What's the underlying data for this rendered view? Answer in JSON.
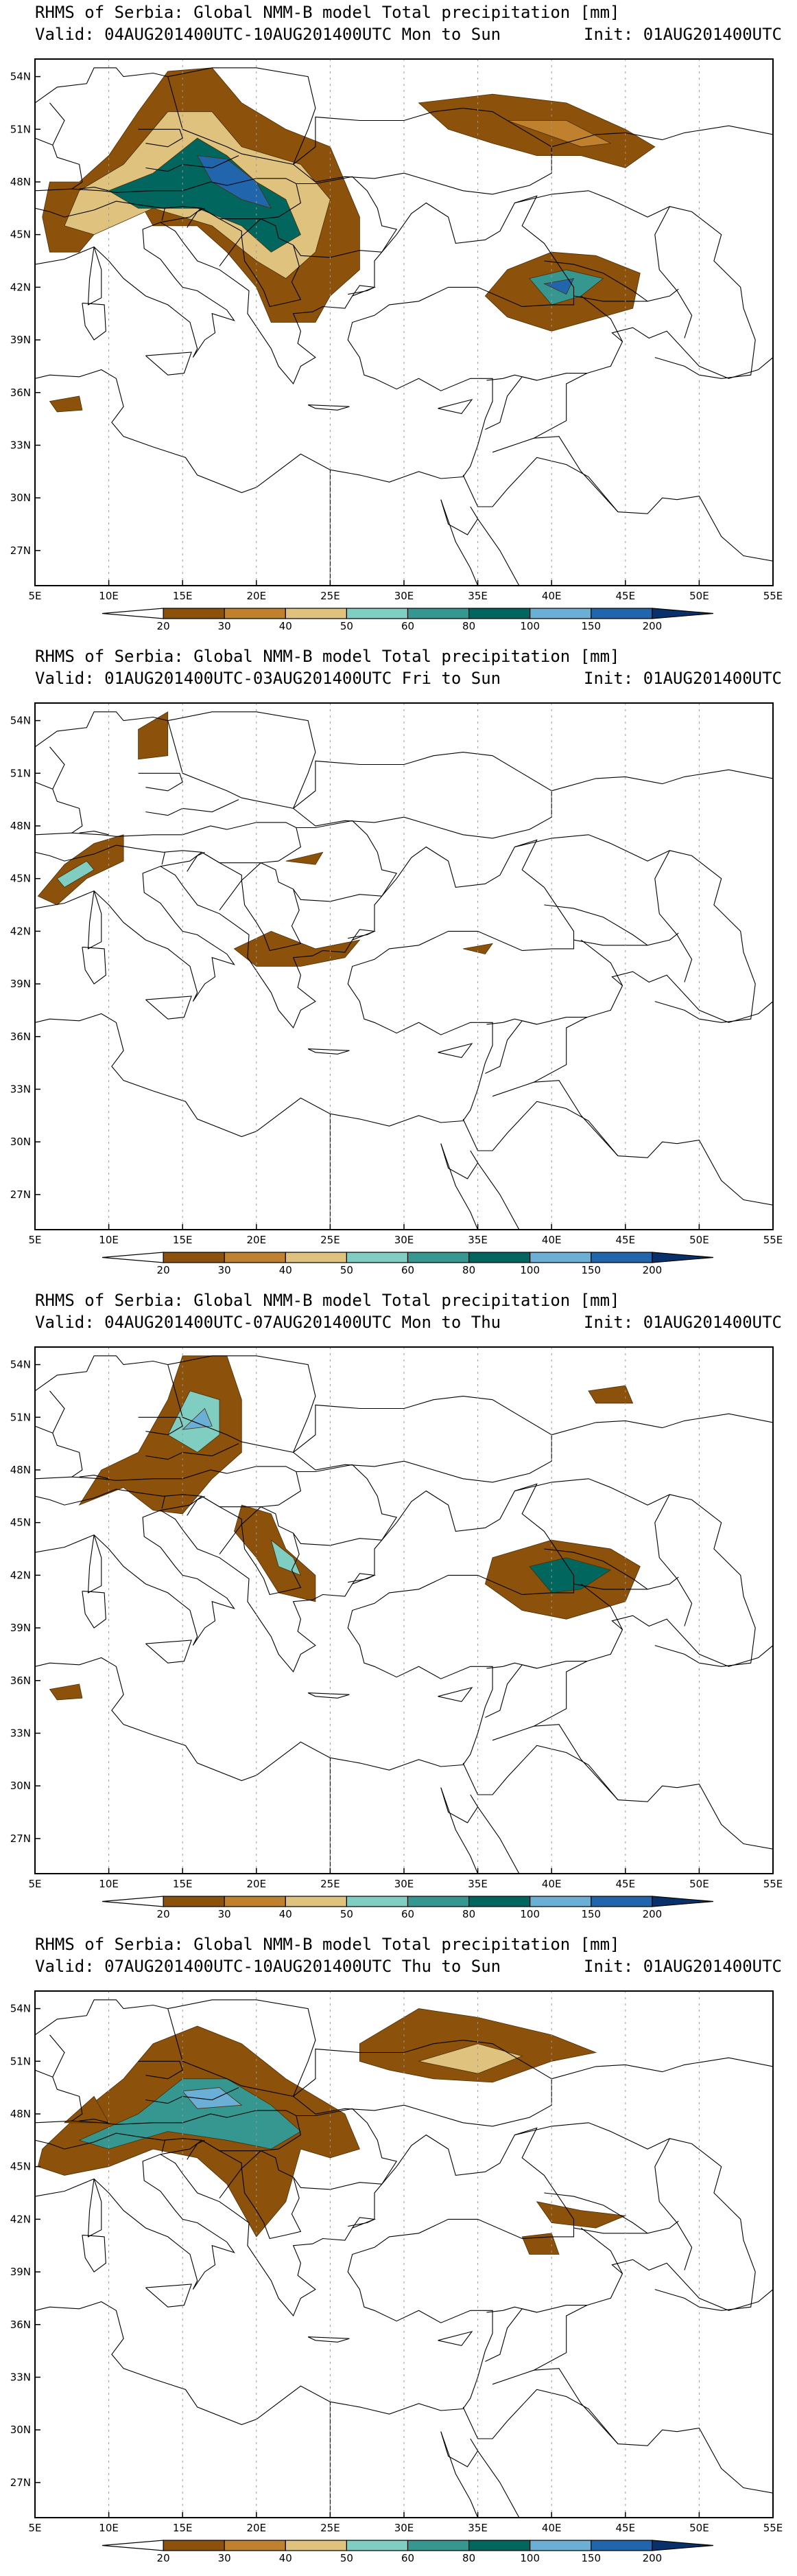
{
  "panels": [
    {
      "title": "RHMS of Serbia: Global NMM-B model Total precipitation [mm]",
      "valid": "Valid: 04AUG201400UTC-10AUG201400UTC Mon to Sun",
      "init": "Init: 01AUG201400UTC",
      "fields": [
        {
          "level": 1,
          "pts": [
            [
              8,
              48
            ],
            [
              10,
              49.5
            ],
            [
              12,
              52
            ],
            [
              14,
              54.3
            ],
            [
              17,
              54.5
            ],
            [
              19,
              52.5
            ],
            [
              22,
              51
            ],
            [
              25,
              50
            ],
            [
              26,
              48
            ],
            [
              27,
              46
            ],
            [
              27,
              43
            ],
            [
              25,
              41.5
            ],
            [
              24,
              40
            ],
            [
              21,
              40
            ],
            [
              20,
              42
            ],
            [
              18,
              44
            ],
            [
              16,
              45.5
            ],
            [
              13,
              45.5
            ],
            [
              12,
              47
            ],
            [
              10,
              46
            ],
            [
              8,
              44
            ],
            [
              6,
              44
            ],
            [
              5.5,
              46
            ],
            [
              6,
              48
            ]
          ]
        },
        {
          "level": 3,
          "pts": [
            [
              8,
              47.5
            ],
            [
              11,
              49
            ],
            [
              14,
              52
            ],
            [
              17,
              52
            ],
            [
              19,
              50
            ],
            [
              23,
              49
            ],
            [
              25,
              47
            ],
            [
              24,
              44
            ],
            [
              22,
              42.5
            ],
            [
              20,
              43.5
            ],
            [
              17,
              45.5
            ],
            [
              13,
              46.5
            ],
            [
              9,
              45
            ],
            [
              7,
              45.5
            ]
          ]
        },
        {
          "level": 6,
          "pts": [
            [
              10,
              47.5
            ],
            [
              13,
              48.5
            ],
            [
              16,
              50.5
            ],
            [
              18,
              49.5
            ],
            [
              20,
              48
            ],
            [
              22,
              47
            ],
            [
              23,
              45
            ],
            [
              21,
              44
            ],
            [
              19,
              45.5
            ],
            [
              16,
              46.5
            ],
            [
              12,
              46.5
            ]
          ]
        },
        {
          "level": 8,
          "pts": [
            [
              16,
              49.5
            ],
            [
              18,
              49.3
            ],
            [
              20,
              48
            ],
            [
              21,
              46.5
            ],
            [
              19,
              47
            ],
            [
              17,
              48
            ]
          ]
        },
        {
          "level": 1,
          "pts": [
            [
              31,
              52.5
            ],
            [
              36,
              53
            ],
            [
              41,
              52.5
            ],
            [
              45,
              51
            ],
            [
              47,
              50
            ],
            [
              45,
              48.8
            ],
            [
              42,
              49.5
            ],
            [
              39,
              49.5
            ],
            [
              36,
              50.2
            ],
            [
              33,
              51
            ]
          ]
        },
        {
          "level": 2,
          "pts": [
            [
              37,
              51.5
            ],
            [
              41,
              51.5
            ],
            [
              44,
              50.2
            ],
            [
              42,
              50
            ]
          ]
        },
        {
          "level": 1,
          "pts": [
            [
              37,
              43
            ],
            [
              40,
              44
            ],
            [
              43,
              43.8
            ],
            [
              46,
              42.8
            ],
            [
              45.5,
              40.8
            ],
            [
              43,
              40.2
            ],
            [
              40,
              39.5
            ],
            [
              37,
              40.3
            ],
            [
              35.5,
              41.5
            ]
          ]
        },
        {
          "level": 5,
          "pts": [
            [
              38.5,
              42.5
            ],
            [
              41,
              43
            ],
            [
              43.5,
              42.5
            ],
            [
              42,
              41.5
            ],
            [
              40,
              41
            ]
          ]
        },
        {
          "level": 8,
          "pts": [
            [
              39.5,
              42.2
            ],
            [
              41.5,
              42.5
            ],
            [
              41,
              41.6
            ]
          ]
        },
        {
          "level": 1,
          "pts": [
            [
              6,
              35.5
            ],
            [
              8,
              35.8
            ],
            [
              8.2,
              35
            ],
            [
              6.5,
              34.9
            ]
          ]
        }
      ]
    },
    {
      "title": "RHMS of Serbia: Global NMM-B model Total precipitation [mm]",
      "valid": "Valid: 01AUG201400UTC-03AUG201400UTC Fri to Sun",
      "init": "Init: 01AUG201400UTC",
      "fields": [
        {
          "level": 1,
          "pts": [
            [
              12,
              53.5
            ],
            [
              14,
              54.5
            ],
            [
              14,
              52
            ],
            [
              12,
              51.8
            ]
          ]
        },
        {
          "level": 1,
          "pts": [
            [
              5.2,
              44
            ],
            [
              7,
              45.8
            ],
            [
              9,
              47
            ],
            [
              11,
              47.5
            ],
            [
              11,
              46
            ],
            [
              8.5,
              45
            ],
            [
              6.5,
              43.5
            ]
          ]
        },
        {
          "level": 4,
          "pts": [
            [
              6.5,
              45
            ],
            [
              8.5,
              46
            ],
            [
              9,
              45.5
            ],
            [
              7,
              44.5
            ]
          ]
        },
        {
          "level": 1,
          "pts": [
            [
              18.5,
              41
            ],
            [
              21,
              42
            ],
            [
              24,
              41
            ],
            [
              27,
              41.5
            ],
            [
              26,
              40.5
            ],
            [
              23,
              40
            ],
            [
              20,
              40
            ]
          ]
        },
        {
          "level": 1,
          "pts": [
            [
              22,
              46
            ],
            [
              24.5,
              46.5
            ],
            [
              24,
              45.8
            ]
          ]
        },
        {
          "level": 1,
          "pts": [
            [
              34,
              41
            ],
            [
              36,
              41.3
            ],
            [
              35.5,
              40.7
            ]
          ]
        }
      ]
    },
    {
      "title": "RHMS of Serbia: Global NMM-B model Total precipitation [mm]",
      "valid": "Valid: 04AUG201400UTC-07AUG201400UTC Mon to Thu",
      "init": "Init: 01AUG201400UTC",
      "fields": [
        {
          "level": 1,
          "pts": [
            [
              12,
              49
            ],
            [
              14,
              52
            ],
            [
              15,
              54.5
            ],
            [
              18,
              54.5
            ],
            [
              19,
              52
            ],
            [
              19,
              49
            ],
            [
              17,
              47.5
            ],
            [
              15,
              45.5
            ],
            [
              13,
              45.7
            ],
            [
              11,
              47
            ],
            [
              8,
              46
            ],
            [
              9.5,
              48
            ]
          ]
        },
        {
          "level": 4,
          "pts": [
            [
              14,
              50
            ],
            [
              15.5,
              52.5
            ],
            [
              17.5,
              52
            ],
            [
              17.5,
              50
            ],
            [
              16,
              49
            ]
          ]
        },
        {
          "level": 7,
          "pts": [
            [
              15,
              50.3
            ],
            [
              16.5,
              51.5
            ],
            [
              17,
              50.5
            ]
          ]
        },
        {
          "level": 1,
          "pts": [
            [
              19,
              46
            ],
            [
              21,
              45.5
            ],
            [
              22,
              43.5
            ],
            [
              24,
              42
            ],
            [
              24,
              40.5
            ],
            [
              21.5,
              41
            ],
            [
              20,
              43
            ],
            [
              18.5,
              44.5
            ]
          ]
        },
        {
          "level": 4,
          "pts": [
            [
              21,
              44
            ],
            [
              22.5,
              43
            ],
            [
              23,
              42
            ],
            [
              21.5,
              42.5
            ]
          ]
        },
        {
          "level": 1,
          "pts": [
            [
              36,
              43
            ],
            [
              40,
              44
            ],
            [
              44,
              43.5
            ],
            [
              46,
              42.5
            ],
            [
              45,
              40.5
            ],
            [
              41,
              39.5
            ],
            [
              38,
              40
            ],
            [
              35.5,
              41.5
            ]
          ]
        },
        {
          "level": 6,
          "pts": [
            [
              38.5,
              42.5
            ],
            [
              41,
              43
            ],
            [
              44,
              42.3
            ],
            [
              42,
              41.2
            ],
            [
              40,
              41
            ]
          ]
        },
        {
          "level": 1,
          "pts": [
            [
              42.5,
              52.5
            ],
            [
              45,
              52.8
            ],
            [
              45.5,
              51.8
            ],
            [
              43,
              51.8
            ]
          ]
        },
        {
          "level": 1,
          "pts": [
            [
              6,
              35.5
            ],
            [
              8,
              35.8
            ],
            [
              8.2,
              35
            ],
            [
              6.5,
              34.9
            ]
          ]
        }
      ]
    },
    {
      "title": "RHMS of Serbia: Global NMM-B model Total precipitation [mm]",
      "valid": "Valid: 07AUG201400UTC-10AUG201400UTC Thu to Sun",
      "init": "Init: 01AUG201400UTC",
      "fields": [
        {
          "level": 1,
          "pts": [
            [
              5.5,
              46
            ],
            [
              8,
              48
            ],
            [
              11,
              50
            ],
            [
              13,
              52
            ],
            [
              16,
              53
            ],
            [
              19,
              52
            ],
            [
              22,
              50
            ],
            [
              26,
              48
            ],
            [
              27,
              46
            ],
            [
              25,
              45.5
            ],
            [
              23,
              46
            ],
            [
              22,
              43
            ],
            [
              20,
              41
            ],
            [
              18,
              44
            ],
            [
              16,
              45.5
            ],
            [
              13,
              46
            ],
            [
              10,
              45
            ],
            [
              7,
              44.5
            ],
            [
              5.2,
              45
            ]
          ]
        },
        {
          "level": 5,
          "pts": [
            [
              8,
              46.5
            ],
            [
              12,
              48
            ],
            [
              15,
              50
            ],
            [
              18,
              50
            ],
            [
              21,
              48.5
            ],
            [
              23,
              47
            ],
            [
              21,
              46
            ],
            [
              18,
              46.5
            ],
            [
              14,
              47
            ],
            [
              10,
              46
            ]
          ]
        },
        {
          "level": 7,
          "pts": [
            [
              15,
              49.3
            ],
            [
              17.5,
              49.5
            ],
            [
              19,
              48.5
            ],
            [
              16,
              48.3
            ]
          ]
        },
        {
          "level": 1,
          "pts": [
            [
              27,
              52
            ],
            [
              31,
              54
            ],
            [
              35,
              53.5
            ],
            [
              40,
              52.5
            ],
            [
              43,
              51.5
            ],
            [
              40,
              51
            ],
            [
              36,
              49.8
            ],
            [
              32,
              50
            ],
            [
              29,
              50.5
            ],
            [
              27,
              51
            ]
          ]
        },
        {
          "level": 3,
          "pts": [
            [
              31,
              51
            ],
            [
              35,
              52
            ],
            [
              38,
              51.3
            ],
            [
              35,
              50.3
            ]
          ]
        },
        {
          "level": 1,
          "pts": [
            [
              39,
              43
            ],
            [
              42,
              42.5
            ],
            [
              45,
              42.2
            ],
            [
              43,
              41.5
            ],
            [
              40,
              41.8
            ]
          ]
        },
        {
          "level": 1,
          "pts": [
            [
              38,
              41
            ],
            [
              40,
              41.2
            ],
            [
              40.5,
              40
            ],
            [
              38.5,
              40
            ]
          ]
        },
        {
          "level": 1,
          "pts": [
            [
              7,
              47.5
            ],
            [
              9,
              49
            ],
            [
              10,
              47.5
            ]
          ]
        }
      ]
    }
  ],
  "axes": {
    "x_ticks": [
      "5E",
      "10E",
      "15E",
      "20E",
      "25E",
      "30E",
      "35E",
      "40E",
      "45E",
      "50E",
      "55E"
    ],
    "y_ticks": [
      "27N",
      "30N",
      "33N",
      "36N",
      "39N",
      "42N",
      "45N",
      "48N",
      "51N",
      "54N"
    ]
  },
  "legend": {
    "labels": [
      "20",
      "30",
      "40",
      "50",
      "60",
      "80",
      "100",
      "150",
      "200"
    ],
    "colors": [
      "#8c510a",
      "#bf812d",
      "#dfc27d",
      "#80cdc1",
      "#35978f",
      "#01665e",
      "#6baed6",
      "#2166ac",
      "#08306b"
    ]
  }
}
